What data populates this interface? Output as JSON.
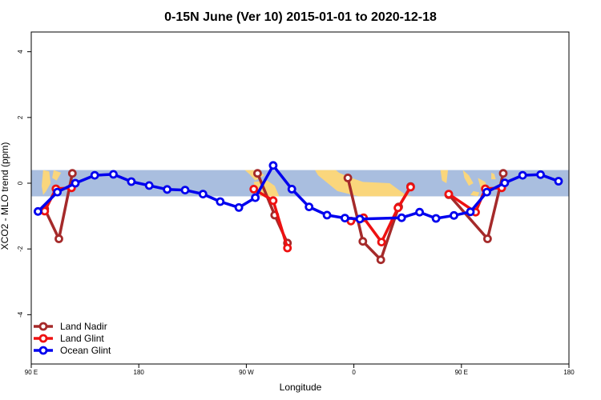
{
  "chart_data": {
    "type": "line",
    "title": "0-15N June (Ver 10)   2015-01-01 to 2020-12-18",
    "xlabel": "Longitude",
    "ylabel": "XCO2 - MLO trend (ppm)",
    "xlim": [
      0,
      360
    ],
    "ylim": [
      -5.5,
      4.6
    ],
    "x_ticks": [
      {
        "value": 0,
        "label": "90 E"
      },
      {
        "value": 72,
        "label": "180"
      },
      {
        "value": 144,
        "label": "90 W"
      },
      {
        "value": 216,
        "label": "0"
      },
      {
        "value": 288,
        "label": "90 E"
      },
      {
        "value": 360,
        "label": "180"
      }
    ],
    "y_ticks": [
      {
        "value": -4,
        "label": "-4"
      },
      {
        "value": -2,
        "label": "-2"
      },
      {
        "value": 0,
        "label": "0"
      },
      {
        "value": 2,
        "label": "2"
      },
      {
        "value": 4,
        "label": "4"
      }
    ],
    "band": {
      "ymin": -0.4,
      "ymax": 0.4,
      "color": "#a9bedf"
    },
    "land_color": "#fad67c",
    "legend_position": "bottom-left",
    "series": [
      {
        "name": "Land Nadir",
        "color": "#a52a2a",
        "segments": [
          [
            [
              9,
              -0.78
            ],
            [
              18.5,
              -1.69
            ],
            [
              27.5,
              0.3
            ]
          ],
          [
            [
              151.5,
              0.3
            ],
            [
              163,
              -0.97
            ],
            [
              171.5,
              -1.82
            ]
          ],
          [
            [
              212,
              0.16
            ],
            [
              222,
              -1.77
            ],
            [
              234,
              -2.33
            ],
            [
              246,
              -0.72
            ],
            [
              254,
              -0.1
            ]
          ],
          [
            [
              279.5,
              -0.35
            ],
            [
              305.5,
              -1.69
            ],
            [
              316,
              0.3
            ]
          ]
        ]
      },
      {
        "name": "Land Glint",
        "color": "#ee1111",
        "segments": [
          [
            [
              9,
              -0.85
            ],
            [
              16.5,
              -0.17
            ],
            [
              27,
              -0.14
            ]
          ],
          [
            [
              149,
              -0.18
            ],
            [
              162,
              -0.53
            ],
            [
              171.5,
              -1.97
            ]
          ],
          [
            [
              214,
              -1.15
            ],
            [
              222.5,
              -1.05
            ],
            [
              234.5,
              -1.79
            ],
            [
              245.5,
              -0.75
            ],
            [
              254,
              -0.12
            ]
          ],
          [
            [
              279.5,
              -0.33
            ],
            [
              297.5,
              -0.88
            ],
            [
              304,
              -0.17
            ],
            [
              315,
              -0.14
            ]
          ]
        ]
      },
      {
        "name": "Ocean Glint",
        "color": "#0000ee",
        "segments": [
          [
            [
              4.5,
              -0.86
            ],
            [
              17.5,
              -0.27
            ],
            [
              29.5,
              0.0
            ],
            [
              42.5,
              0.24
            ],
            [
              55,
              0.27
            ],
            [
              67,
              0.05
            ],
            [
              79,
              -0.07
            ],
            [
              91,
              -0.19
            ],
            [
              103,
              -0.21
            ],
            [
              115,
              -0.33
            ],
            [
              126.5,
              -0.56
            ],
            [
              139,
              -0.74
            ],
            [
              150,
              -0.44
            ],
            [
              162,
              0.54
            ],
            [
              174.5,
              -0.18
            ],
            [
              186,
              -0.72
            ],
            [
              198,
              -0.97
            ],
            [
              210,
              -1.06
            ],
            [
              220,
              -1.09
            ],
            [
              248,
              -1.05
            ],
            [
              260,
              -0.88
            ],
            [
              271,
              -1.07
            ],
            [
              283,
              -0.98
            ],
            [
              294,
              -0.87
            ],
            [
              305,
              -0.27
            ],
            [
              317,
              0.01
            ],
            [
              329,
              0.24
            ],
            [
              341,
              0.26
            ],
            [
              353,
              0.06
            ]
          ]
        ]
      }
    ]
  }
}
